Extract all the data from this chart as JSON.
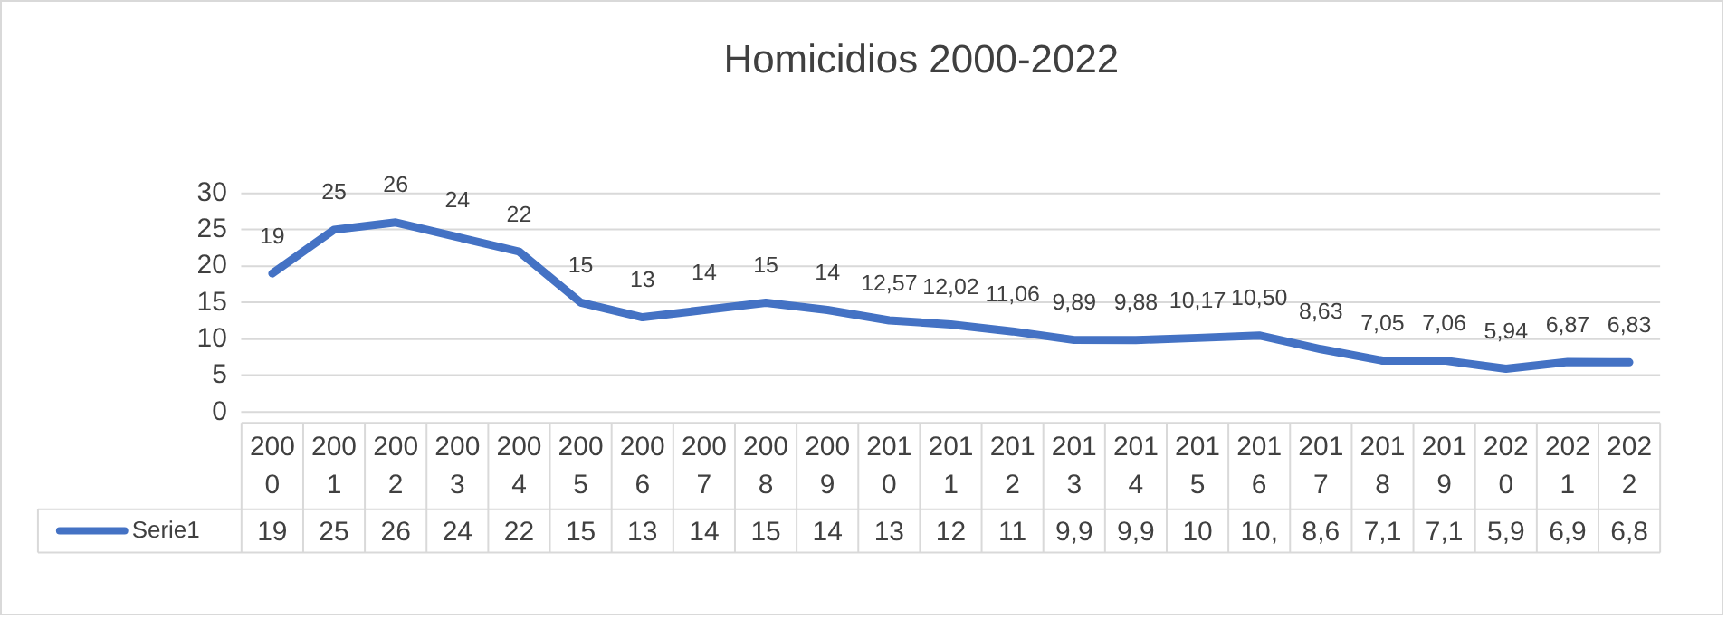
{
  "chart_data": {
    "type": "line",
    "title": "Homicidios 2000-2022",
    "categories": [
      "2000",
      "2001",
      "2002",
      "2003",
      "2004",
      "2005",
      "2006",
      "2007",
      "2008",
      "2009",
      "2010",
      "2011",
      "2012",
      "2013",
      "2014",
      "2015",
      "2016",
      "2017",
      "2018",
      "2019",
      "2020",
      "2021",
      "2022"
    ],
    "series": [
      {
        "name": "Serie1",
        "color": "#4472c4",
        "values": [
          19,
          25,
          26,
          24,
          22,
          15,
          13,
          14,
          15,
          14,
          12.57,
          12.02,
          11.06,
          9.89,
          9.88,
          10.17,
          10.5,
          8.63,
          7.05,
          7.06,
          5.94,
          6.87,
          6.83
        ],
        "value_labels": [
          "19",
          "25",
          "26",
          "24",
          "22",
          "15",
          "13",
          "14",
          "15",
          "14",
          "13",
          "12",
          "11",
          "9,9",
          "9,9",
          "10",
          "10,",
          "8,6",
          "7,1",
          "7,1",
          "5,9",
          "6,9",
          "6,8"
        ]
      }
    ],
    "value_labels": [
      "19",
      "25",
      "26",
      "24",
      "22",
      "15",
      "13",
      "14",
      "15",
      "14",
      "12,57",
      "12,02",
      "11,06",
      "9,89",
      "9,88",
      "10,17",
      "10,50",
      "8,63",
      "7,05",
      "7,06",
      "5,94",
      "6,87",
      "6,83"
    ],
    "ylim": [
      0,
      30
    ],
    "yticks": [
      0,
      5,
      10,
      15,
      20,
      25,
      30
    ],
    "grid": "y",
    "legend": "bottom",
    "marker": "none",
    "line_style": "solid"
  }
}
